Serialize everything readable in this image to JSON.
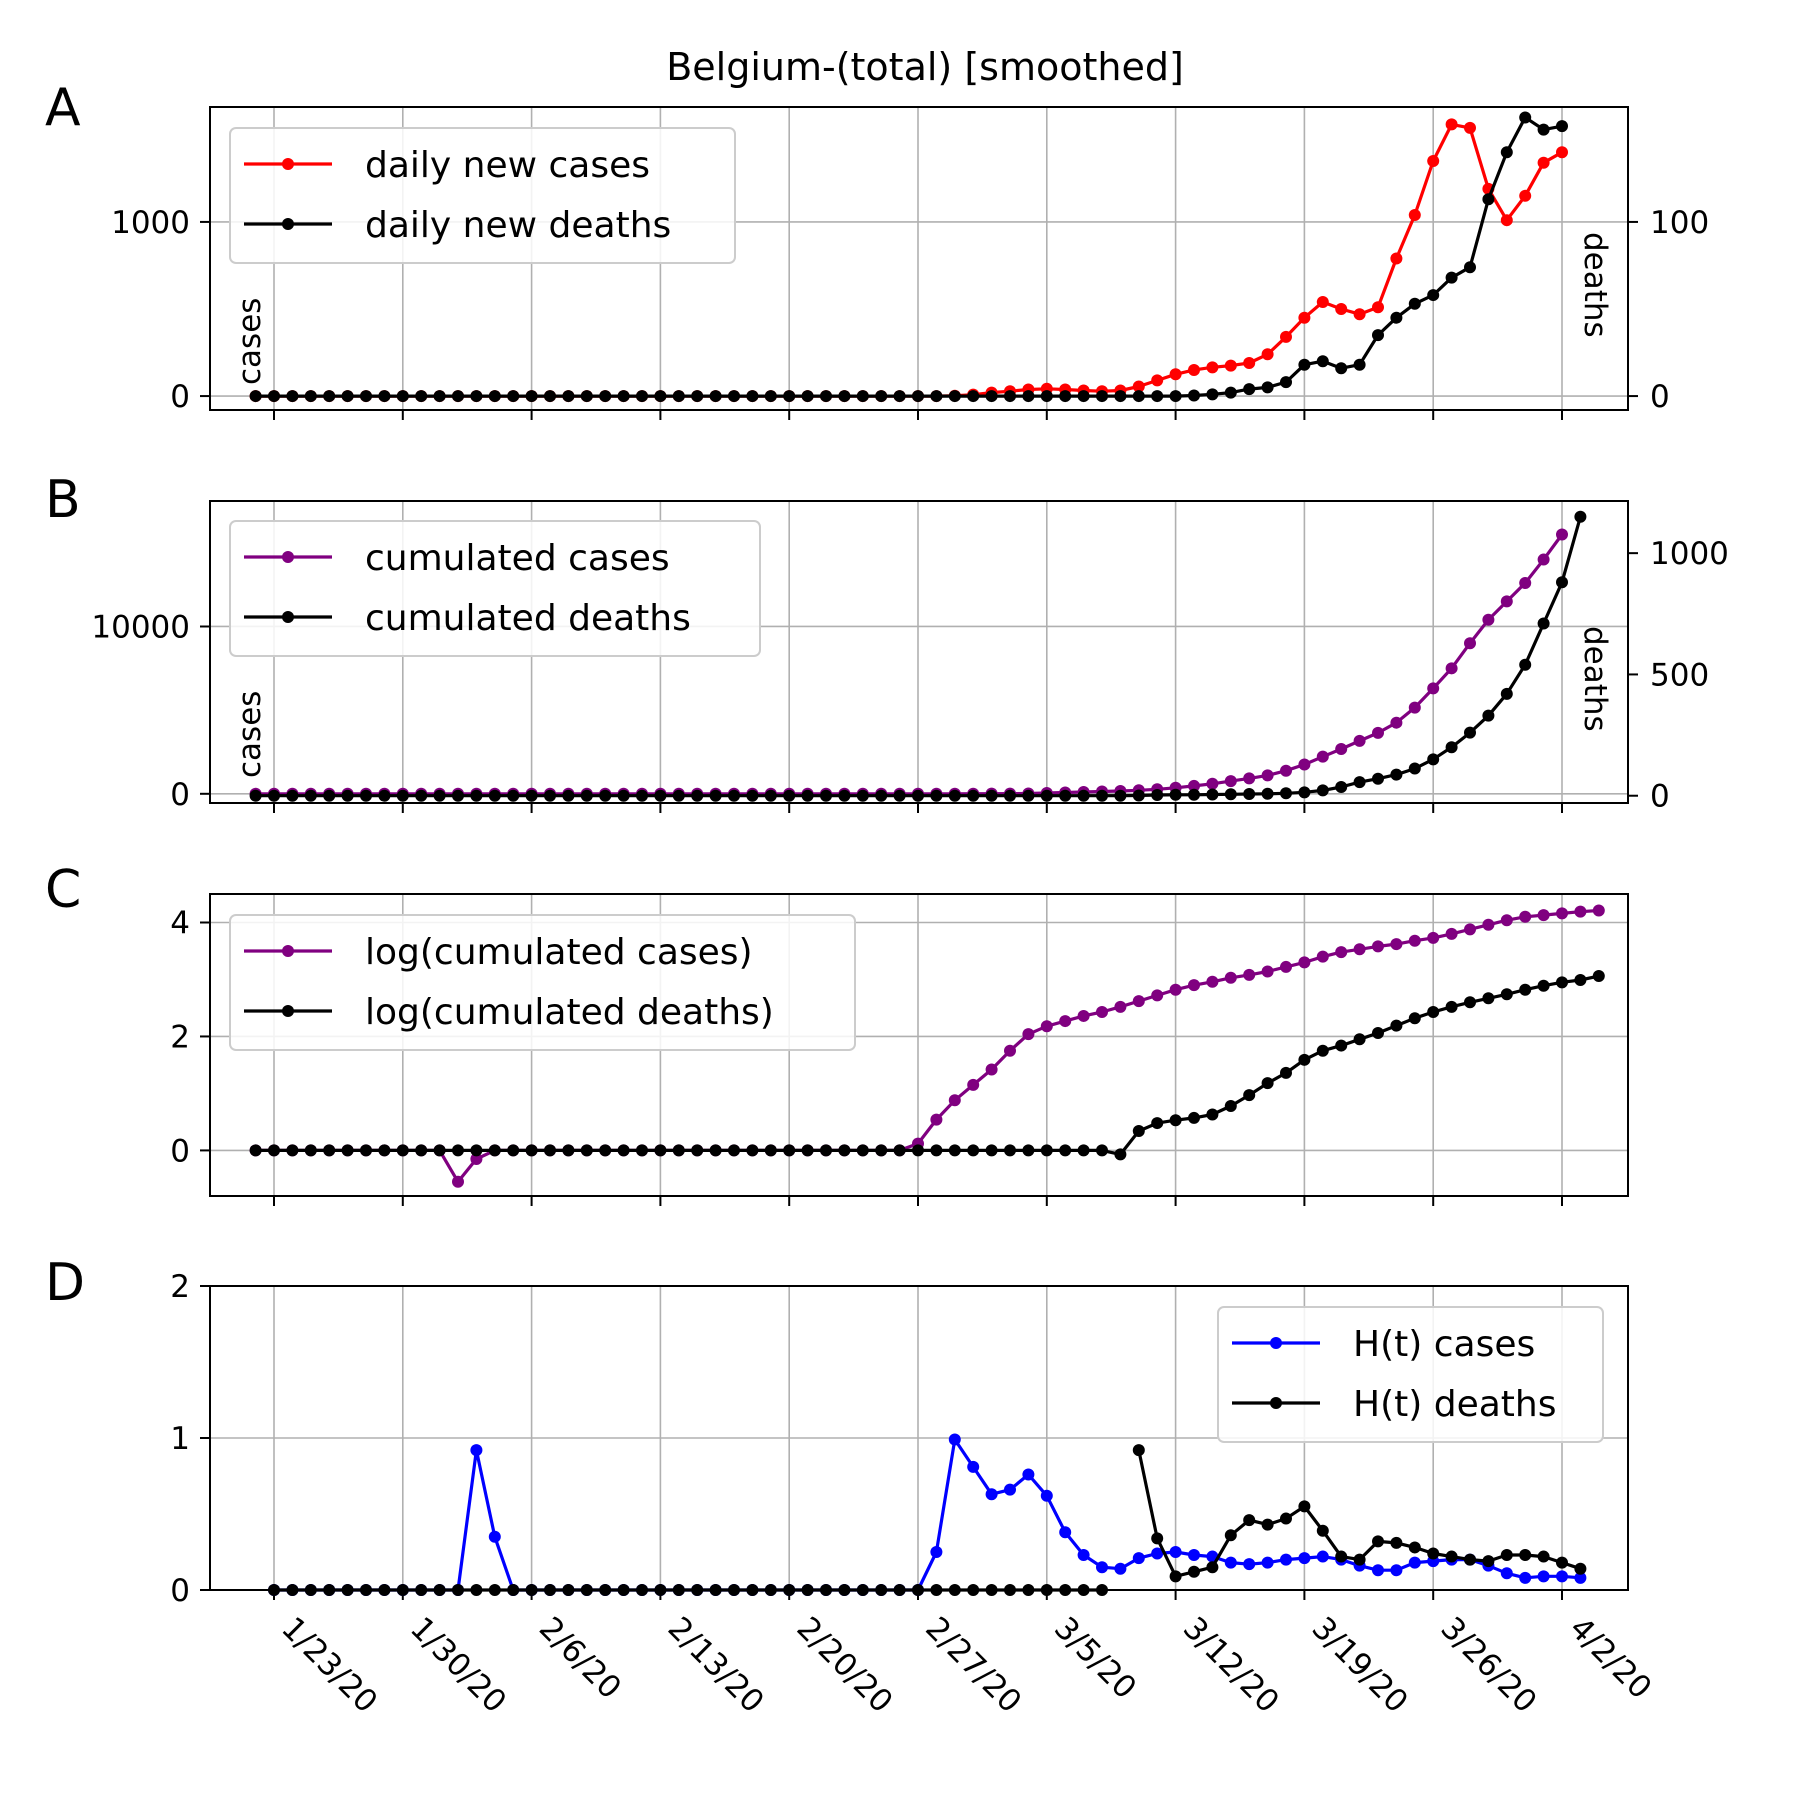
{
  "figure": {
    "title": "Belgium-(total) [smoothed]"
  },
  "x_tick_labels": [
    "1/23/20",
    "1/30/20",
    "2/6/20",
    "2/13/20",
    "2/20/20",
    "2/27/20",
    "3/5/20",
    "3/12/20",
    "3/19/20",
    "3/26/20",
    "4/2/20"
  ],
  "chart_data": [
    {
      "panel": "A",
      "type": "line",
      "x_start": "1/22/20",
      "ylabel": "cases",
      "y2label": "deaths",
      "ylim": [
        -80,
        1660
      ],
      "yticks": [
        0,
        1000
      ],
      "y2lim": [
        -8,
        166
      ],
      "y2ticks": [
        0,
        100
      ],
      "grid": true,
      "legend": "top-left",
      "series": [
        {
          "name": "daily new cases",
          "color": "#ff0000",
          "axis": "left",
          "values": [
            0,
            0,
            0,
            0,
            0,
            0,
            0,
            0,
            0,
            0,
            0,
            0,
            0,
            0,
            0,
            0,
            0,
            0,
            0,
            0,
            0,
            0,
            0,
            0,
            0,
            0,
            0,
            0,
            0,
            0,
            0,
            0,
            0,
            0,
            0,
            0,
            0,
            0,
            2,
            8,
            20,
            28,
            38,
            42,
            38,
            32,
            28,
            32,
            55,
            90,
            125,
            150,
            165,
            175,
            190,
            240,
            340,
            450,
            540,
            500,
            470,
            510,
            790,
            1040,
            1350,
            1560,
            1540,
            1190,
            1010,
            1150,
            1340,
            1400
          ]
        },
        {
          "name": "daily new deaths",
          "color": "#000000",
          "axis": "right",
          "values": [
            0,
            0,
            0,
            0,
            0,
            0,
            0,
            0,
            0,
            0,
            0,
            0,
            0,
            0,
            0,
            0,
            0,
            0,
            0,
            0,
            0,
            0,
            0,
            0,
            0,
            0,
            0,
            0,
            0,
            0,
            0,
            0,
            0,
            0,
            0,
            0,
            0,
            0,
            0,
            0,
            0,
            0,
            0,
            0,
            0,
            0,
            0,
            0,
            0,
            0,
            0,
            0.3,
            1,
            2,
            4,
            5,
            8,
            18,
            20,
            16,
            18,
            35,
            45,
            53,
            58,
            68,
            74,
            113,
            140,
            160,
            153,
            155
          ]
        }
      ]
    },
    {
      "panel": "B",
      "type": "line",
      "x_start": "1/22/20",
      "ylabel": "cases",
      "y2label": "deaths",
      "ylim": [
        -550,
        17500
      ],
      "yticks": [
        0,
        10000
      ],
      "y2lim": [
        -30,
        1215
      ],
      "y2ticks": [
        0,
        500,
        1000
      ],
      "grid": true,
      "legend": "top-left",
      "series": [
        {
          "name": "cumulated cases",
          "color": "#800080",
          "axis": "left",
          "values": [
            0,
            0,
            0,
            0,
            0,
            0,
            0,
            0,
            0,
            0,
            0,
            0,
            0,
            0,
            0,
            0,
            0,
            0,
            0,
            0,
            0,
            0,
            0,
            0,
            0,
            0,
            0,
            0,
            0,
            0,
            0,
            0,
            0,
            0,
            0,
            0,
            0,
            0,
            2,
            4,
            8,
            14,
            20,
            45,
            80,
            110,
            140,
            170,
            210,
            270,
            360,
            470,
            600,
            760,
            920,
            1100,
            1380,
            1750,
            2220,
            2680,
            3160,
            3640,
            4250,
            5150,
            6300,
            7500,
            9000,
            10400,
            11500,
            12600,
            14000,
            15500
          ]
        },
        {
          "name": "cumulated deaths",
          "color": "#000000",
          "axis": "right",
          "values": [
            0,
            0,
            0,
            0,
            0,
            0,
            0,
            0,
            0,
            0,
            0,
            0,
            0,
            0,
            0,
            0,
            0,
            0,
            0,
            0,
            0,
            0,
            0,
            0,
            0,
            0,
            0,
            0,
            0,
            0,
            0,
            0,
            0,
            0,
            0,
            0,
            0,
            0,
            0,
            0,
            0,
            0,
            0,
            0,
            0,
            0,
            0,
            0,
            1,
            3,
            4,
            4,
            5,
            6,
            7,
            8,
            10,
            14,
            22,
            36,
            56,
            70,
            87,
            112,
            150,
            200,
            260,
            330,
            420,
            540,
            710,
            880,
            1150
          ]
        }
      ]
    },
    {
      "panel": "C",
      "type": "line",
      "x_start": "1/22/20",
      "ylim": [
        -0.8,
        4.5
      ],
      "yticks": [
        0,
        2,
        4
      ],
      "grid": true,
      "legend": "top-left",
      "series": [
        {
          "name": "log(cumulated cases)",
          "color": "#800080",
          "values": [
            0,
            0,
            0,
            0,
            0,
            0,
            0,
            0,
            0,
            0,
            0,
            -0.55,
            -0.15,
            0,
            0,
            0,
            0,
            0,
            0,
            0,
            0,
            0,
            0,
            0,
            0,
            0,
            0,
            0,
            0,
            0,
            0,
            0,
            0,
            0,
            0,
            0,
            0.12,
            0.54,
            0.88,
            1.15,
            1.42,
            1.75,
            2.04,
            2.18,
            2.27,
            2.36,
            2.43,
            2.52,
            2.62,
            2.72,
            2.82,
            2.9,
            2.96,
            3.03,
            3.08,
            3.14,
            3.22,
            3.3,
            3.4,
            3.48,
            3.53,
            3.58,
            3.62,
            3.68,
            3.73,
            3.8,
            3.88,
            3.96,
            4.04,
            4.1,
            4.13,
            4.16,
            4.19,
            4.21
          ]
        },
        {
          "name": "log(cumulated deaths)",
          "color": "#000000",
          "values": [
            0,
            0,
            0,
            0,
            0,
            0,
            0,
            0,
            0,
            0,
            0,
            0,
            0,
            0,
            0,
            0,
            0,
            0,
            0,
            0,
            0,
            0,
            0,
            0,
            0,
            0,
            0,
            0,
            0,
            0,
            0,
            0,
            0,
            0,
            0,
            0,
            0,
            0,
            0,
            0,
            0,
            0,
            0,
            0,
            0,
            0,
            0,
            -0.07,
            0.34,
            0.48,
            0.53,
            0.57,
            0.63,
            0.78,
            0.97,
            1.18,
            1.36,
            1.59,
            1.75,
            1.84,
            1.95,
            2.06,
            2.19,
            2.32,
            2.43,
            2.52,
            2.6,
            2.67,
            2.74,
            2.82,
            2.89,
            2.95,
            2.99,
            3.06
          ]
        }
      ]
    },
    {
      "panel": "D",
      "type": "line",
      "x_start": "1/22/20",
      "ylim": [
        0,
        2
      ],
      "yticks": [
        0,
        1,
        2
      ],
      "grid": true,
      "legend": "top-right",
      "series": [
        {
          "name": "H(t) cases",
          "color": "#0000ff",
          "values": [
            null,
            0,
            0,
            0,
            0,
            0,
            0,
            0,
            0,
            0,
            0,
            0,
            0.92,
            0.35,
            0,
            0,
            0,
            0,
            0,
            0,
            0,
            0,
            0,
            0,
            0,
            0,
            0,
            0,
            0,
            0,
            0,
            0,
            0,
            0,
            0,
            0,
            0,
            0.25,
            0.99,
            0.81,
            0.63,
            0.66,
            0.76,
            0.62,
            0.38,
            0.23,
            0.15,
            0.14,
            0.21,
            0.24,
            0.25,
            0.23,
            0.22,
            0.18,
            0.17,
            0.18,
            0.2,
            0.21,
            0.22,
            0.2,
            0.16,
            0.13,
            0.13,
            0.18,
            0.19,
            0.2,
            0.2,
            0.16,
            0.11,
            0.08,
            0.09,
            0.09,
            0.08
          ]
        },
        {
          "name": "H(t) deaths",
          "color": "#000000",
          "values": [
            null,
            0,
            0,
            0,
            0,
            0,
            0,
            0,
            0,
            0,
            0,
            0,
            0,
            0,
            0,
            0,
            0,
            0,
            0,
            0,
            0,
            0,
            0,
            0,
            0,
            0,
            0,
            0,
            0,
            0,
            0,
            0,
            0,
            0,
            0,
            0,
            0,
            0,
            0,
            0,
            0,
            0,
            0,
            0,
            0,
            0,
            0,
            null,
            0.92,
            0.34,
            0.09,
            0.12,
            0.15,
            0.36,
            0.46,
            0.43,
            0.47,
            0.55,
            0.39,
            0.22,
            0.2,
            0.32,
            0.31,
            0.28,
            0.24,
            0.22,
            0.2,
            0.19,
            0.23,
            0.23,
            0.22,
            0.18,
            0.14
          ]
        }
      ]
    }
  ]
}
